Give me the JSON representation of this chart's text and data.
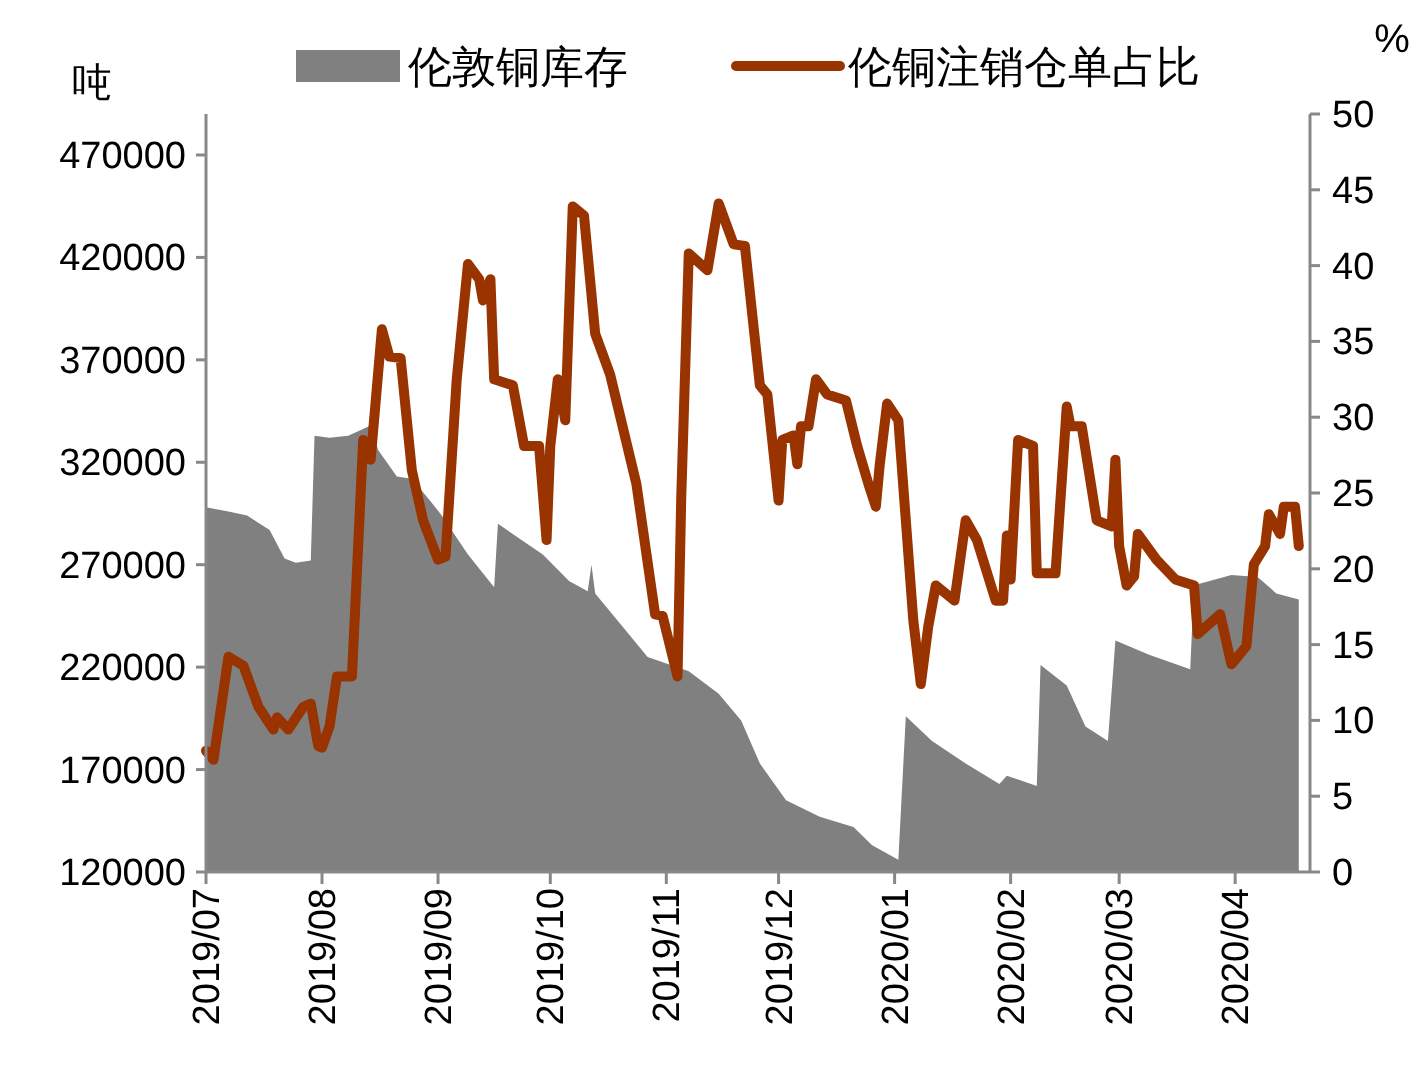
{
  "chart_data": {
    "type": "area",
    "ylabel": "吨",
    "y2label": "%",
    "legend": "top",
    "grid": false,
    "xlim": [
      "2019-07-01",
      "2020-04-21"
    ],
    "xticks": [
      {
        "value": "2019-07-01",
        "label": "2019/07"
      },
      {
        "value": "2019-08-01",
        "label": "2019/08"
      },
      {
        "value": "2019-09-01",
        "label": "2019/09"
      },
      {
        "value": "2019-10-01",
        "label": "2019/10"
      },
      {
        "value": "2019-11-01",
        "label": "2019/11"
      },
      {
        "value": "2019-12-01",
        "label": "2019/12"
      },
      {
        "value": "2020-01-01",
        "label": "2020/01"
      },
      {
        "value": "2020-02-01",
        "label": "2020/02"
      },
      {
        "value": "2020-03-01",
        "label": "2020/03"
      },
      {
        "value": "2020-04-01",
        "label": "2020/04"
      }
    ],
    "ylim": [
      120000,
      490000
    ],
    "yticks": [
      120000,
      170000,
      220000,
      270000,
      320000,
      370000,
      420000,
      470000
    ],
    "y2lim": [
      0,
      50
    ],
    "y2ticks": [
      0,
      5,
      10,
      15,
      20,
      25,
      30,
      35,
      40,
      45,
      50
    ],
    "series": [
      {
        "name": "伦敦铜库存",
        "color": "#808080",
        "x": [
          "2019-07-01",
          "2019-07-07",
          "2019-07-12",
          "2019-07-18",
          "2019-07-22",
          "2019-07-25",
          "2019-07-29",
          "2019-07-30",
          "2019-08-03",
          "2019-08-08",
          "2019-08-14",
          "2019-08-16",
          "2019-08-21",
          "2019-08-25",
          "2019-08-30",
          "2019-09-02",
          "2019-09-09",
          "2019-09-16",
          "2019-09-17",
          "2019-09-29",
          "2019-10-06",
          "2019-10-11",
          "2019-10-12",
          "2019-10-13",
          "2019-10-22",
          "2019-10-27",
          "2019-11-07",
          "2019-11-15",
          "2019-11-21",
          "2019-11-26",
          "2019-12-03",
          "2019-12-12",
          "2019-12-21",
          "2019-12-26",
          "2020-01-02",
          "2020-01-04",
          "2020-01-11",
          "2020-01-20",
          "2020-01-29",
          "2020-01-31",
          "2020-02-08",
          "2020-02-09",
          "2020-02-16",
          "2020-02-21",
          "2020-02-27",
          "2020-02-29",
          "2020-03-09",
          "2020-03-20",
          "2020-03-21",
          "2020-03-31",
          "2020-04-07",
          "2020-04-12",
          "2020-04-18"
        ],
        "values": [
          298000,
          296000,
          294000,
          287000,
          273000,
          271000,
          272000,
          333000,
          332000,
          333000,
          338000,
          326000,
          313000,
          312000,
          301000,
          294000,
          275000,
          259000,
          290000,
          275000,
          262000,
          257000,
          270000,
          256000,
          236000,
          225000,
          218000,
          207000,
          194000,
          173000,
          155000,
          147000,
          142000,
          133000,
          126000,
          196000,
          184000,
          173000,
          163000,
          167000,
          162000,
          221000,
          211000,
          191000,
          184000,
          233000,
          226000,
          219000,
          260000,
          265000,
          264000,
          256000,
          253000
        ]
      },
      {
        "name": "伦铜注销仓单占比",
        "type": "line",
        "axis": "y2",
        "color": "#993300",
        "x": [
          "2019-07-01",
          "2019-07-03",
          "2019-07-07",
          "2019-07-11",
          "2019-07-15",
          "2019-07-19",
          "2019-07-20",
          "2019-07-23",
          "2019-07-27",
          "2019-07-29",
          "2019-07-31",
          "2019-08-01",
          "2019-08-03",
          "2019-08-05",
          "2019-08-09",
          "2019-08-12",
          "2019-08-14",
          "2019-08-17",
          "2019-08-19",
          "2019-08-22",
          "2019-08-25",
          "2019-08-28",
          "2019-09-01",
          "2019-09-03",
          "2019-09-06",
          "2019-09-09",
          "2019-09-12",
          "2019-09-13",
          "2019-09-15",
          "2019-09-16",
          "2019-09-21",
          "2019-09-24",
          "2019-09-28",
          "2019-09-30",
          "2019-10-01",
          "2019-10-03",
          "2019-10-05",
          "2019-10-07",
          "2019-10-10",
          "2019-10-13",
          "2019-10-17",
          "2019-10-24",
          "2019-10-29",
          "2019-10-31",
          "2019-11-04",
          "2019-11-05",
          "2019-11-07",
          "2019-11-12",
          "2019-11-15",
          "2019-11-19",
          "2019-11-22",
          "2019-11-26",
          "2019-11-28",
          "2019-12-01",
          "2019-12-02",
          "2019-12-05",
          "2019-12-06",
          "2019-12-07",
          "2019-12-09",
          "2019-12-11",
          "2019-12-14",
          "2019-12-19",
          "2019-12-22",
          "2019-12-25",
          "2019-12-27",
          "2019-12-28",
          "2019-12-30",
          "2020-01-02",
          "2020-01-06",
          "2020-01-08",
          "2020-01-10",
          "2020-01-12",
          "2020-01-17",
          "2020-01-20",
          "2020-01-23",
          "2020-01-28",
          "2020-01-30",
          "2020-01-31",
          "2020-02-01",
          "2020-02-03",
          "2020-02-07",
          "2020-02-08",
          "2020-02-13",
          "2020-02-16",
          "2020-02-17",
          "2020-02-20",
          "2020-02-24",
          "2020-02-28",
          "2020-02-29",
          "2020-03-01",
          "2020-03-03",
          "2020-03-05",
          "2020-03-06",
          "2020-03-11",
          "2020-03-16",
          "2020-03-21",
          "2020-03-22",
          "2020-03-28",
          "2020-03-31",
          "2020-04-04",
          "2020-04-06",
          "2020-04-09",
          "2020-04-10",
          "2020-04-13",
          "2020-04-14",
          "2020-04-17",
          "2020-04-18"
        ],
        "values": [
          8.0,
          7.4,
          14.2,
          13.6,
          10.9,
          9.4,
          10.2,
          9.4,
          10.9,
          11.1,
          8.3,
          8.2,
          9.6,
          12.9,
          12.9,
          28.5,
          27.2,
          35.8,
          34.0,
          33.9,
          26.5,
          23.2,
          20.6,
          20.8,
          32.5,
          40.1,
          39.1,
          37.7,
          39.1,
          32.5,
          32.1,
          28.1,
          28.1,
          21.9,
          28.1,
          32.5,
          29.8,
          43.9,
          43.3,
          35.5,
          32.8,
          25.6,
          17.0,
          16.9,
          12.9,
          24.8,
          40.8,
          39.7,
          44.1,
          41.4,
          41.3,
          32.1,
          31.5,
          24.5,
          28.5,
          28.8,
          26.9,
          29.4,
          29.4,
          32.5,
          31.5,
          31.1,
          28.1,
          25.6,
          24.1,
          26.8,
          30.9,
          29.8,
          16.6,
          12.4,
          16.2,
          18.9,
          17.9,
          23.2,
          21.9,
          17.9,
          17.9,
          22.2,
          19.3,
          28.5,
          28.1,
          19.7,
          19.7,
          30.7,
          29.4,
          29.4,
          23.2,
          22.8,
          27.2,
          21.5,
          18.9,
          19.5,
          22.3,
          20.6,
          19.3,
          18.9,
          15.7,
          17.0,
          13.7,
          14.9,
          20.3,
          21.5,
          23.6,
          22.3,
          24.1,
          24.1,
          21.5
        ]
      }
    ]
  }
}
